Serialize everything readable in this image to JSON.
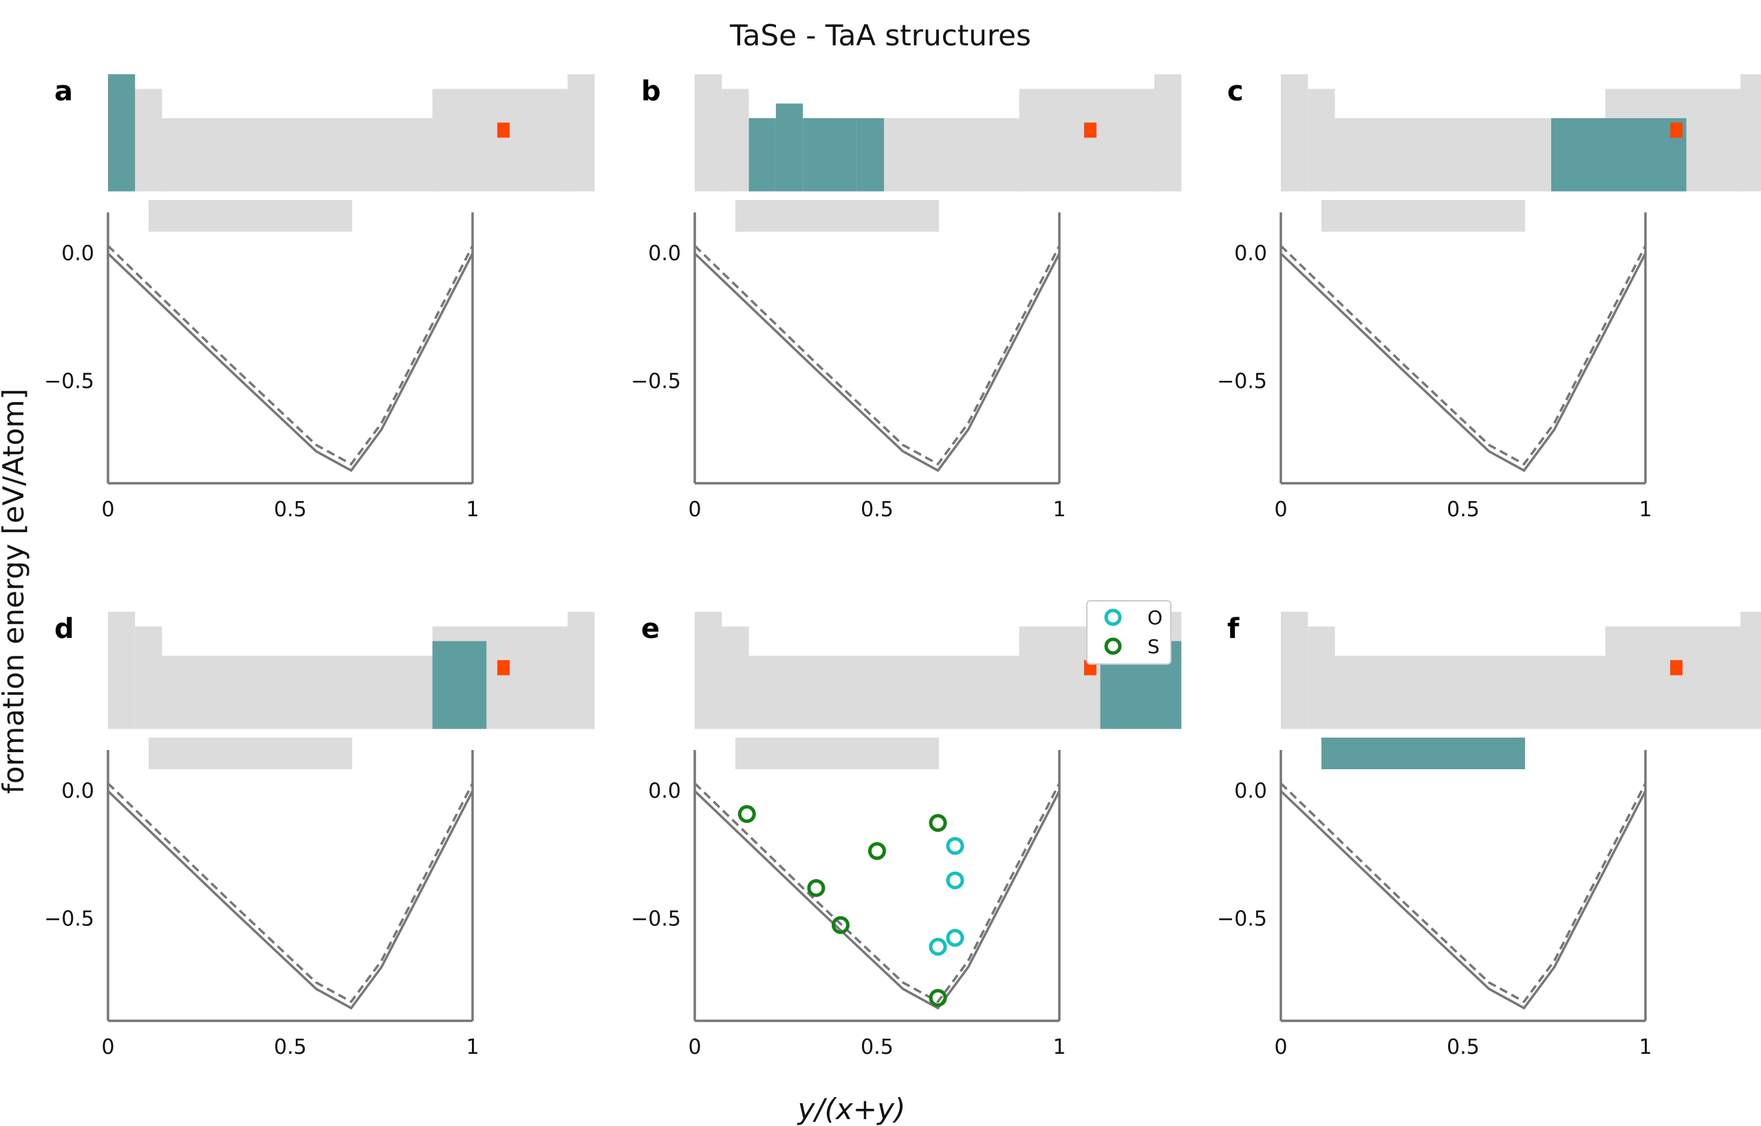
{
  "figure": {
    "title": "TaSe - TaA structures",
    "xlabel": "y/(x+y)",
    "ylabel": "formation energy [eV/Atom]"
  },
  "colors": {
    "table_bg": "#dcdcdc",
    "highlight": "#5f9ea0",
    "marker_element": "#ff4500",
    "hull_line": "#777777",
    "axis": "#777777",
    "O": "#17bfbf",
    "S": "#138013"
  },
  "legend": {
    "entries": [
      "O",
      "S"
    ]
  },
  "chart_data": {
    "type": "scatter",
    "xlim": [
      0,
      1
    ],
    "ylim": [
      -0.9,
      0.15
    ],
    "xticks": [
      "0",
      "0.5",
      "1"
    ],
    "yticks": [
      "0.0",
      "−0.5"
    ],
    "grid": false,
    "legend_placement": "right of panel e",
    "hull": {
      "solid": {
        "x": [
          0,
          0.333,
          0.571,
          0.667,
          0.75,
          1.0
        ],
        "y": [
          0.0,
          -0.455,
          -0.775,
          -0.85,
          -0.69,
          0.0
        ]
      },
      "dashed": {
        "x": [
          0,
          0.333,
          0.571,
          0.667,
          0.75,
          1.0
        ],
        "y": [
          0.03,
          -0.43,
          -0.75,
          -0.825,
          -0.665,
          0.03
        ]
      }
    },
    "panels": [
      {
        "label": "a",
        "highlight": "group1",
        "points": []
      },
      {
        "label": "b",
        "highlight": "group3-7",
        "points": []
      },
      {
        "label": "c",
        "highlight": "group8-10",
        "points": []
      },
      {
        "label": "d",
        "highlight": "group13",
        "points": []
      },
      {
        "label": "e",
        "highlight": "group16",
        "points": [
          {
            "element": "S",
            "x": 0.143,
            "y": -0.09
          },
          {
            "element": "S",
            "x": 0.333,
            "y": -0.38
          },
          {
            "element": "S",
            "x": 0.4,
            "y": -0.525
          },
          {
            "element": "S",
            "x": 0.5,
            "y": -0.235
          },
          {
            "element": "S",
            "x": 0.667,
            "y": -0.125
          },
          {
            "element": "S",
            "x": 0.667,
            "y": -0.81
          },
          {
            "element": "O",
            "x": 0.714,
            "y": -0.215
          },
          {
            "element": "O",
            "x": 0.714,
            "y": -0.35
          },
          {
            "element": "O",
            "x": 0.714,
            "y": -0.575
          },
          {
            "element": "O",
            "x": 0.667,
            "y": -0.61
          }
        ]
      },
      {
        "label": "f",
        "highlight": "f-block",
        "points": []
      }
    ]
  }
}
